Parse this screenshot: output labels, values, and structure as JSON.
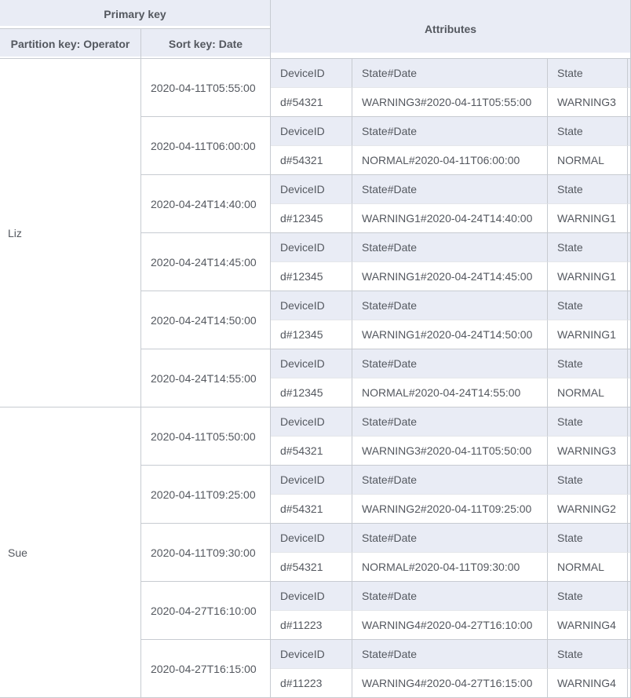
{
  "header": {
    "primary_key": "Primary key",
    "partition_key": "Partition key: Operator",
    "sort_key": "Sort key: Date",
    "attributes": "Attributes"
  },
  "attribute_columns": [
    "DeviceID",
    "State#Date",
    "State"
  ],
  "groups": [
    {
      "partition": "Liz",
      "items": [
        {
          "sort": "2020-04-11T05:55:00",
          "device_id": "d#54321",
          "state_date": "WARNING3#2020-04-11T05:55:00",
          "state": "WARNING3"
        },
        {
          "sort": "2020-04-11T06:00:00",
          "device_id": "d#54321",
          "state_date": "NORMAL#2020-04-11T06:00:00",
          "state": "NORMAL"
        },
        {
          "sort": "2020-04-24T14:40:00",
          "device_id": "d#12345",
          "state_date": "WARNING1#2020-04-24T14:40:00",
          "state": "WARNING1"
        },
        {
          "sort": "2020-04-24T14:45:00",
          "device_id": "d#12345",
          "state_date": "WARNING1#2020-04-24T14:45:00",
          "state": "WARNING1"
        },
        {
          "sort": "2020-04-24T14:50:00",
          "device_id": "d#12345",
          "state_date": "WARNING1#2020-04-24T14:50:00",
          "state": "WARNING1"
        },
        {
          "sort": "2020-04-24T14:55:00",
          "device_id": "d#12345",
          "state_date": "NORMAL#2020-04-24T14:55:00",
          "state": "NORMAL"
        }
      ]
    },
    {
      "partition": "Sue",
      "items": [
        {
          "sort": "2020-04-11T05:50:00",
          "device_id": "d#54321",
          "state_date": "WARNING3#2020-04-11T05:50:00",
          "state": "WARNING3"
        },
        {
          "sort": "2020-04-11T09:25:00",
          "device_id": "d#54321",
          "state_date": "WARNING2#2020-04-11T09:25:00",
          "state": "WARNING2"
        },
        {
          "sort": "2020-04-11T09:30:00",
          "device_id": "d#54321",
          "state_date": "NORMAL#2020-04-11T09:30:00",
          "state": "NORMAL"
        },
        {
          "sort": "2020-04-27T16:10:00",
          "device_id": "d#11223",
          "state_date": "WARNING4#2020-04-27T16:10:00",
          "state": "WARNING4"
        },
        {
          "sort": "2020-04-27T16:15:00",
          "device_id": "d#11223",
          "state_date": "WARNING4#2020-04-27T16:15:00",
          "state": "WARNING4"
        }
      ]
    }
  ],
  "colors": {
    "header_bg": "#e9ecf5",
    "grid_border": "#c7cbd1",
    "grid_border_light": "#e4e6ea",
    "text": "#54585f"
  }
}
